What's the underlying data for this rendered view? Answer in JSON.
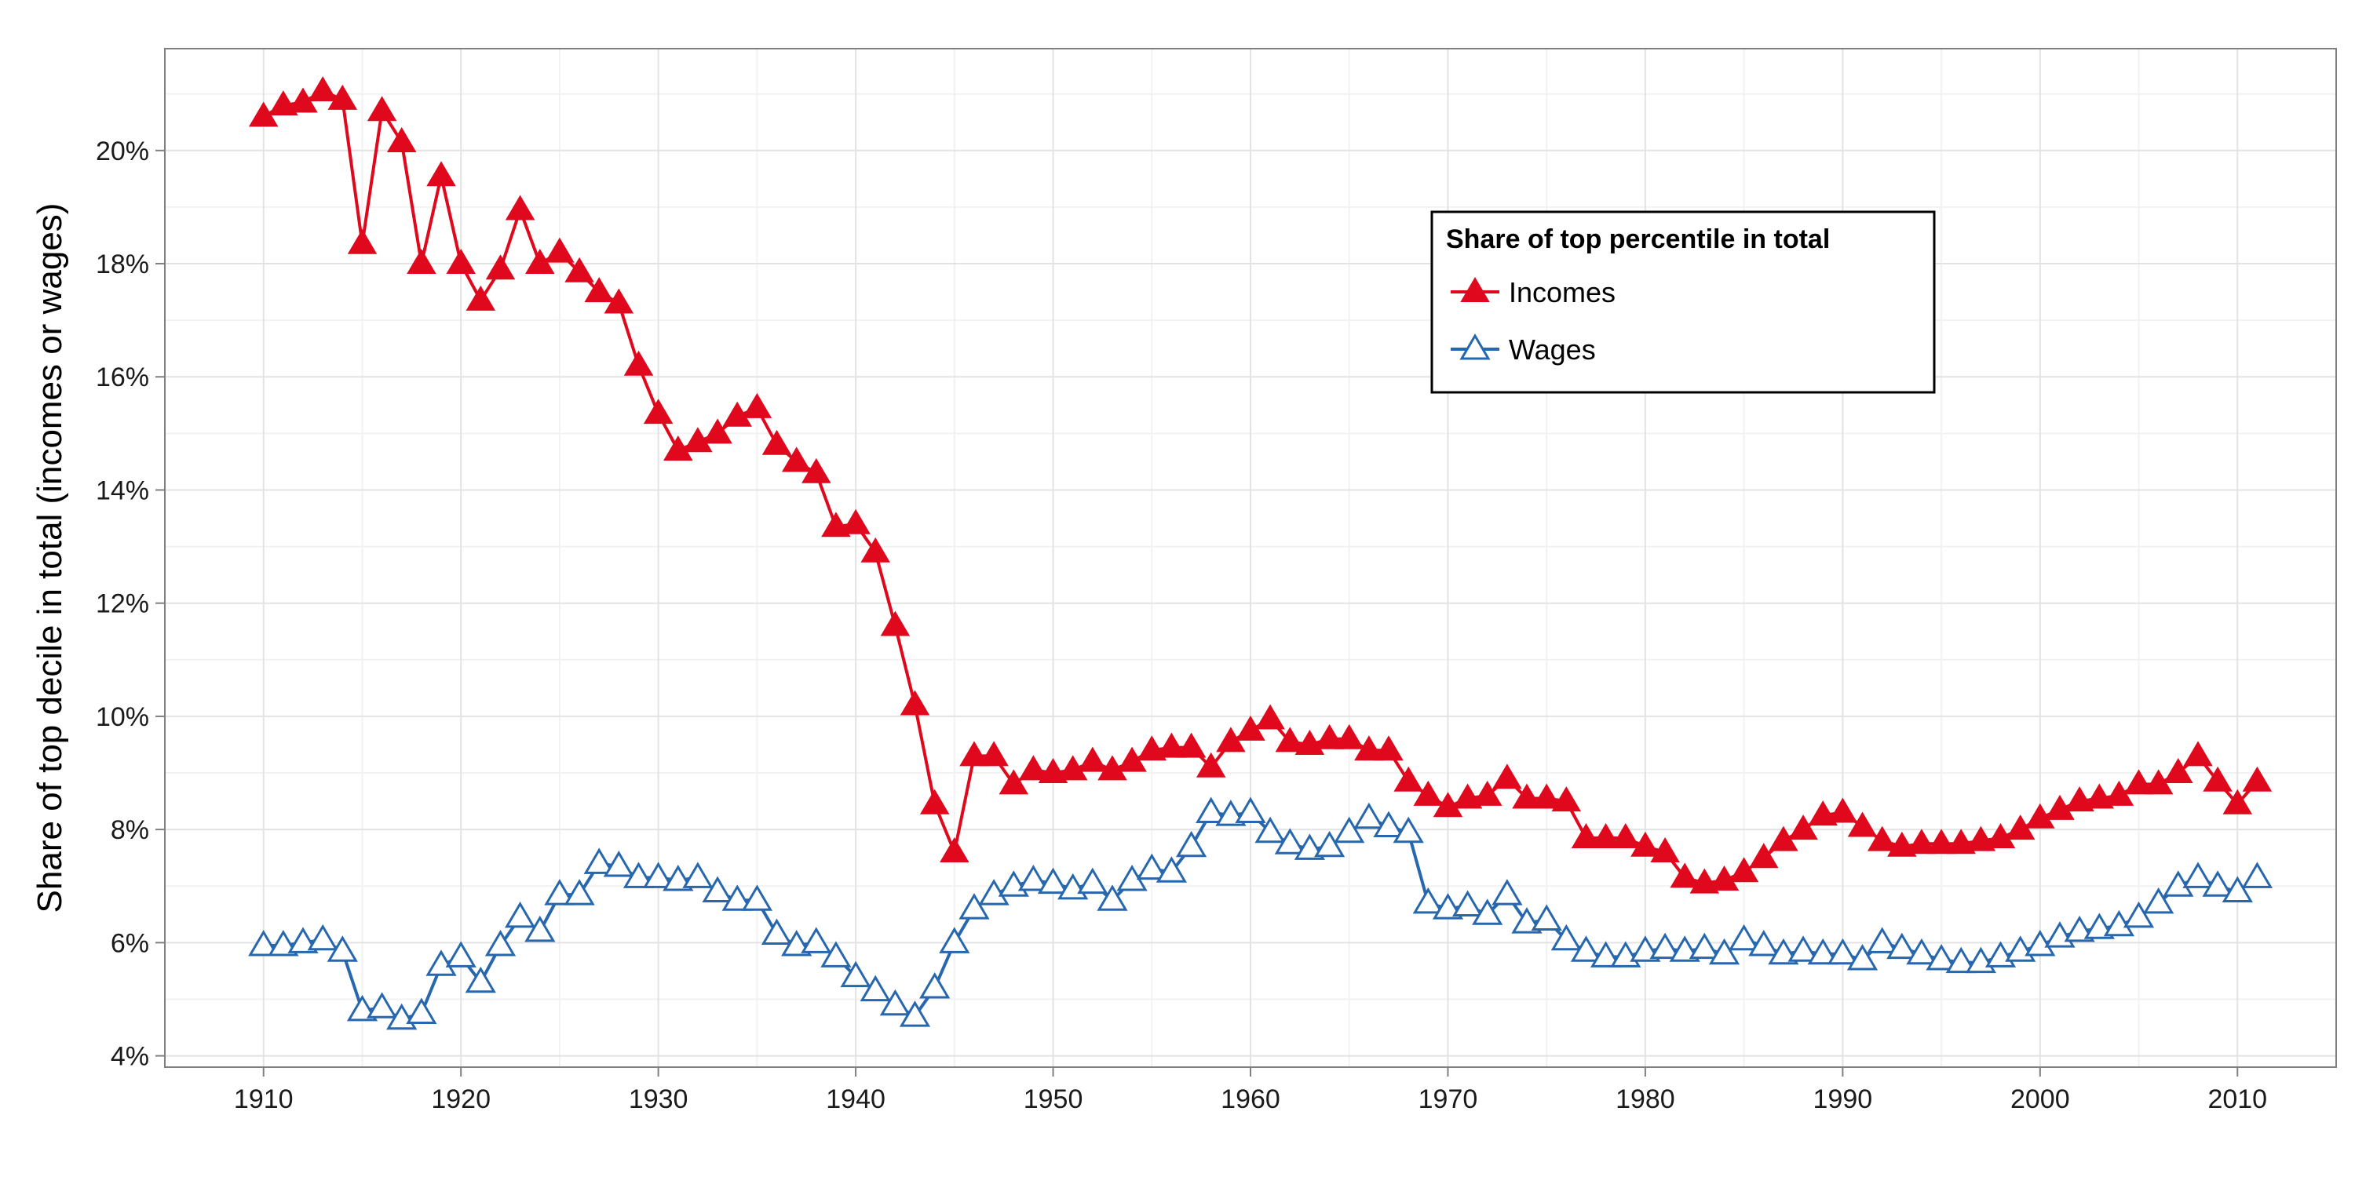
{
  "chart_data": {
    "type": "line",
    "ylabel": "Share of top decile in total (incomes or wages)",
    "xlabel": "",
    "xlim": [
      1905,
      2015
    ],
    "ylim": [
      3.8,
      21.8
    ],
    "x_ticks": [
      1910,
      1920,
      1930,
      1940,
      1950,
      1960,
      1970,
      1980,
      1990,
      2000,
      2010
    ],
    "x_tick_labels": [
      "1910",
      "1920",
      "1930",
      "1940",
      "1950",
      "1960",
      "1970",
      "1980",
      "1990",
      "2000",
      "2010"
    ],
    "y_ticks": [
      4,
      6,
      8,
      10,
      12,
      14,
      16,
      18,
      20
    ],
    "y_tick_labels": [
      "4%",
      "6%",
      "8%",
      "10%",
      "12%",
      "14%",
      "16%",
      "18%",
      "20%"
    ],
    "grid": true,
    "legend": {
      "title": "Share of top percentile in total",
      "placement": "top-center-right"
    },
    "series": [
      {
        "name": "Incomes",
        "color": "#e0081c",
        "marker": "filled-triangle",
        "x_start": 1910,
        "values": [
          20.6,
          20.8,
          20.85,
          21.05,
          20.9,
          18.35,
          20.7,
          20.15,
          18.0,
          19.55,
          18.0,
          17.35,
          17.9,
          18.95,
          18.0,
          18.2,
          17.85,
          17.5,
          17.3,
          16.2,
          15.35,
          14.7,
          14.85,
          15.0,
          15.3,
          15.45,
          14.8,
          14.5,
          14.3,
          13.35,
          13.4,
          12.9,
          11.6,
          10.2,
          8.45,
          7.6,
          9.3,
          9.3,
          8.8,
          9.05,
          9.0,
          9.05,
          9.2,
          9.05,
          9.2,
          9.4,
          9.45,
          9.45,
          9.1,
          9.55,
          9.75,
          9.95,
          9.55,
          9.5,
          9.6,
          9.6,
          9.4,
          9.4,
          8.85,
          8.6,
          8.4,
          8.55,
          8.6,
          8.9,
          8.55,
          8.55,
          8.5,
          7.85,
          7.85,
          7.85,
          7.7,
          7.6,
          7.15,
          7.05,
          7.1,
          7.25,
          7.5,
          7.8,
          8.0,
          8.25,
          8.3,
          8.05,
          7.8,
          7.7,
          7.75,
          7.75,
          7.75,
          7.8,
          7.85,
          8.0,
          8.2,
          8.35,
          8.5,
          8.55,
          8.6,
          8.8,
          8.8,
          9.0,
          9.3,
          8.85,
          8.45,
          8.85
        ]
      },
      {
        "name": "Wages",
        "color": "#2767ae",
        "marker": "open-triangle",
        "x_start": 1910,
        "values": [
          5.95,
          5.95,
          6.0,
          6.05,
          5.85,
          4.8,
          4.85,
          4.65,
          4.75,
          5.6,
          5.75,
          5.3,
          5.95,
          6.45,
          6.2,
          6.85,
          6.85,
          7.4,
          7.35,
          7.15,
          7.15,
          7.1,
          7.15,
          6.9,
          6.75,
          6.75,
          6.15,
          5.95,
          6.0,
          5.75,
          5.4,
          5.15,
          4.9,
          4.7,
          5.2,
          6.0,
          6.6,
          6.85,
          7.0,
          7.1,
          7.05,
          6.95,
          7.05,
          6.75,
          7.1,
          7.3,
          7.25,
          7.7,
          8.3,
          8.25,
          8.3,
          7.95,
          7.75,
          7.65,
          7.7,
          7.95,
          8.2,
          8.05,
          7.95,
          6.7,
          6.6,
          6.65,
          6.5,
          6.85,
          6.35,
          6.4,
          6.05,
          5.85,
          5.75,
          5.75,
          5.85,
          5.9,
          5.85,
          5.9,
          5.8,
          6.05,
          5.95,
          5.8,
          5.85,
          5.8,
          5.8,
          5.7,
          6.0,
          5.9,
          5.8,
          5.7,
          5.65,
          5.65,
          5.75,
          5.85,
          5.95,
          6.1,
          6.2,
          6.25,
          6.3,
          6.45,
          6.7,
          7.0,
          7.15,
          7.0,
          6.9,
          7.15
        ]
      }
    ]
  }
}
